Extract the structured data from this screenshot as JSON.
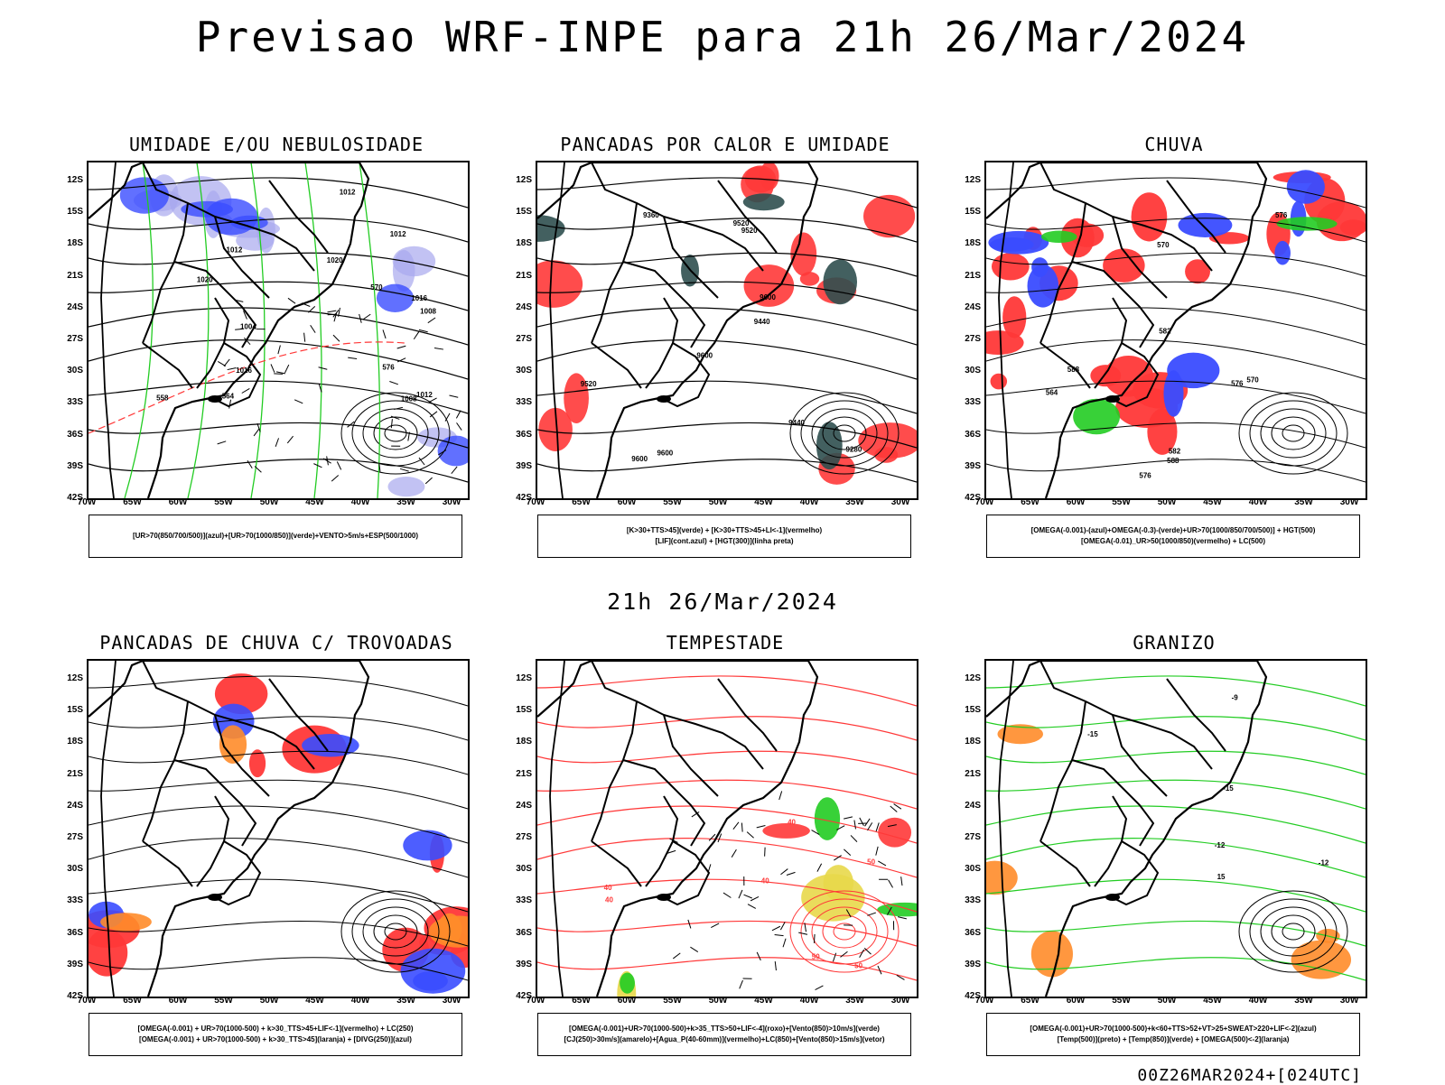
{
  "title": "Previsao WRF-INPE  para 21h 26/Mar/2024",
  "subtitle": "21h 26/Mar/2024",
  "footer": "00Z26MAR2024+[024UTC]",
  "lat_labels": [
    "12S",
    "15S",
    "18S",
    "21S",
    "24S",
    "27S",
    "30S",
    "33S",
    "36S",
    "39S",
    "42S"
  ],
  "lon_labels": [
    "70W",
    "65W",
    "60W",
    "55W",
    "50W",
    "45W",
    "40W",
    "35W",
    "30W"
  ],
  "colors": {
    "blue": "#3a4cff",
    "lightblue": "#a8a8ee",
    "green": "#22cc22",
    "red": "#ff3838",
    "darkteal": "#2f4f4f",
    "yellow": "#e8d84a",
    "orange": "#ff8c2a"
  },
  "panels": [
    {
      "title": "UMIDADE E/OU NEBULOSIDADE",
      "legend": [
        "[UR>70(850/700/500)](azul)+[UR>70(1000/850)](verde)+VENTO>5m/s+ESP(500/1000)"
      ],
      "contours": [
        "1012",
        "1016",
        "1020",
        "1008",
        "1004",
        "1012",
        "1016",
        "1012",
        "1008",
        "1012",
        "1020",
        "576",
        "570",
        "564",
        "558"
      ]
    },
    {
      "title": "PANCADAS POR CALOR E UMIDADE",
      "legend": [
        "[K>30+TTS>45](verde) + [K>30+TTS>45+LI<-1](vermelho)",
        "[LIF](cont.azul) + [HGT(300)](linha preta)"
      ],
      "contours": [
        "9600",
        "9600",
        "9520",
        "9440",
        "9360",
        "9280",
        "9520",
        "9440",
        "9520",
        "9600",
        "9600"
      ]
    },
    {
      "title": "CHUVA",
      "legend": [
        "[OMEGA(-0.001)-(azul)+OMEGA(-0.3)-(verde)+UR>70(1000/850/700/500)] + HGT(500)",
        "[OMEGA(-0.01)_UR>50(1000/850)(vermelho) + LC(500)"
      ],
      "contours": [
        "588",
        "582",
        "576",
        "570",
        "564",
        "576",
        "570",
        "582",
        "588",
        "576"
      ]
    },
    {
      "title": "PANCADAS DE CHUVA C/ TROVOADAS",
      "legend": [
        "[OMEGA(-0.001) + UR>70(1000-500) + k>30_TTS>45+LIF<-1](vermelho) + LC(250)",
        "[OMEGA(-0.001) + UR>70(1000-500) + k>30_TTS>45](laranja) + [DIVG(250)](azul)"
      ],
      "contours": []
    },
    {
      "title": "TEMPESTADE",
      "legend": [
        "[OMEGA(-0.001)+UR>70(1000-500)+k>35_TTS>50+LIF<-4](roxo)+[Vento(850)>10m/s](verde)",
        "[CJ(250)>30m/s](amarelo)+[Agua_P(40-60mm)](vermelho)+LC(850)+[Vento(850)>15m/s](vetor)"
      ],
      "contours": [
        "40",
        "50",
        "40",
        "50",
        "50",
        "40",
        "40"
      ]
    },
    {
      "title": "GRANIZO",
      "legend": [
        "[OMEGA(-0.001)+UR>70(1000-500)+k<60+TTS>52+VT>25+SWEAT>220+LIF<-2](azul)",
        "[Temp(500)](preto) + [Temp(850)](verde) + [OMEGA(500)<-2](laranja)"
      ],
      "contours": [
        "-9",
        "-15",
        "-12",
        "-15",
        "-12",
        "15"
      ]
    }
  ]
}
